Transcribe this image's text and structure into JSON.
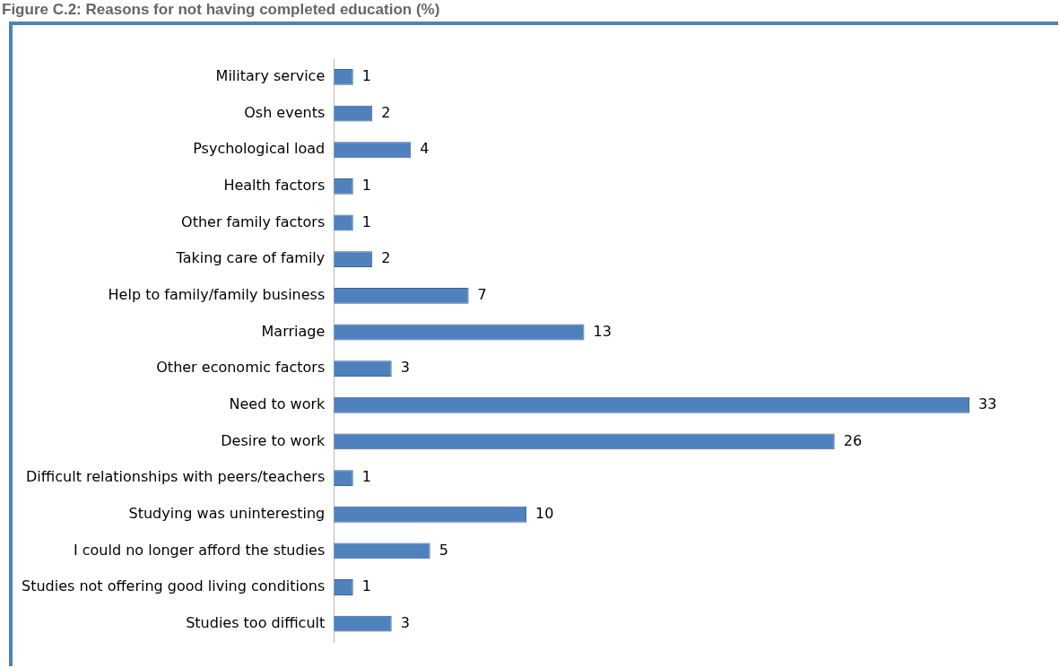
{
  "chart_data": {
    "type": "bar",
    "orientation": "horizontal",
    "title": "Figure C.2: Reasons for not having completed education (%)",
    "categories": [
      "Military service",
      "Osh events",
      "Psychological load",
      "Health factors",
      "Other family factors",
      "Taking care of family",
      "Help to family/family business",
      "Marriage",
      "Other economic factors",
      "Need to work",
      "Desire to work",
      "Difficult relationships with peers/teachers",
      "Studying was uninteresting",
      "I could no longer afford the studies",
      "Studies not offering good living conditions",
      "Studies too difficult"
    ],
    "values": [
      1,
      2,
      4,
      1,
      1,
      2,
      7,
      13,
      3,
      33,
      26,
      1,
      10,
      5,
      1,
      3
    ],
    "color": "#4f81bd",
    "data_labels": true,
    "legend": false
  }
}
